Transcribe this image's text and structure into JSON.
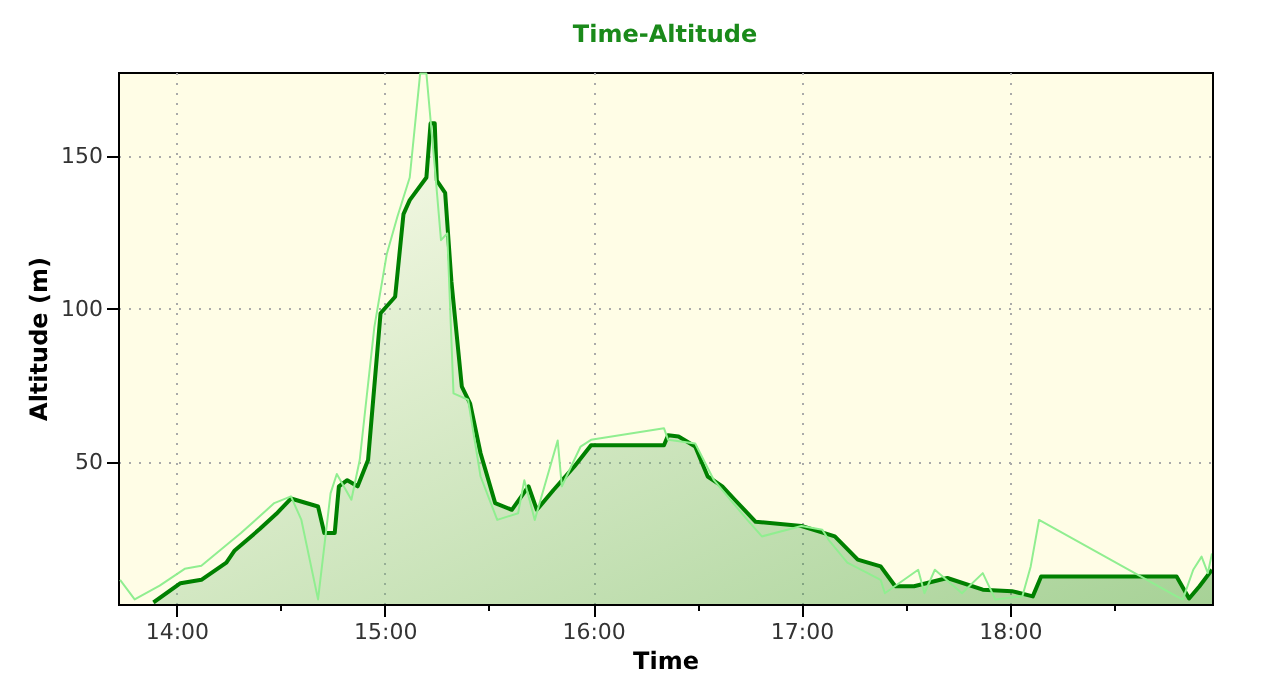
{
  "chart_data": {
    "type": "area",
    "title": "Time-Altitude",
    "xlabel": "Time",
    "ylabel": "Altitude (m)",
    "grid": true,
    "xlim": [
      13.72,
      18.97
    ],
    "ylim": [
      3.5,
      177.5
    ],
    "xticks": [
      {
        "value": 14,
        "label": "14:00"
      },
      {
        "value": 14.5,
        "label": null
      },
      {
        "value": 15,
        "label": "15:00"
      },
      {
        "value": 15.5,
        "label": null
      },
      {
        "value": 16,
        "label": "16:00"
      },
      {
        "value": 16.5,
        "label": null
      },
      {
        "value": 17,
        "label": "17:00"
      },
      {
        "value": 17.5,
        "label": null
      },
      {
        "value": 18,
        "label": "18:00"
      },
      {
        "value": 18.5,
        "label": null
      }
    ],
    "yticks": [
      50,
      100,
      150
    ],
    "series": [
      {
        "color": "#008000",
        "x": [
          13.89,
          14.02,
          14.12,
          14.24,
          14.28,
          14.4,
          14.48,
          14.55,
          14.68,
          14.71,
          14.76,
          14.78,
          14.82,
          14.87,
          14.92,
          14.98,
          15.05,
          15.09,
          15.12,
          15.2,
          15.22,
          15.24,
          15.25,
          15.29,
          15.32,
          15.37,
          15.41,
          15.46,
          15.53,
          15.61,
          15.69,
          15.73,
          15.81,
          15.91,
          15.99,
          16.18,
          16.34,
          16.36,
          16.41,
          16.49,
          16.55,
          16.62,
          16.68,
          16.78,
          17.0,
          17.16,
          17.27,
          17.38,
          17.45,
          17.54,
          17.7,
          17.87,
          18.01,
          18.11,
          18.15,
          18.8,
          18.86,
          18.91,
          18.97
        ],
        "values": [
          4,
          10.3,
          11.4,
          17,
          21,
          28,
          33,
          38,
          35.4,
          26.7,
          26.7,
          42,
          44,
          42,
          50.6,
          98.6,
          104,
          131,
          135.6,
          143,
          160.7,
          160.7,
          142,
          138,
          109,
          74.6,
          69,
          52.8,
          36.5,
          34.3,
          42,
          34.3,
          40.8,
          48.5,
          55.4,
          55.4,
          55.4,
          58.7,
          58.3,
          55,
          45.2,
          42,
          37.6,
          30.4,
          29,
          25.6,
          18,
          15.8,
          9.3,
          9.3,
          12,
          8.2,
          7.7,
          6,
          12.5,
          12.5,
          5.3,
          9.3,
          14.7
        ]
      },
      {
        "type": "line",
        "color": "#90ee90",
        "x": [
          13.73,
          13.8,
          13.92,
          14.04,
          14.12,
          14.31,
          14.47,
          14.55,
          14.6,
          14.68,
          14.74,
          14.77,
          14.84,
          14.88,
          14.95,
          15.01,
          15.06,
          15.12,
          15.17,
          15.2,
          15.24,
          15.27,
          15.3,
          15.33,
          15.4,
          15.46,
          15.54,
          15.64,
          15.67,
          15.72,
          15.83,
          15.85,
          15.94,
          15.99,
          16.34,
          16.36,
          16.49,
          16.58,
          16.74,
          16.81,
          17.0,
          17.1,
          17.13,
          17.22,
          17.38,
          17.4,
          17.56,
          17.59,
          17.64,
          17.77,
          17.87,
          17.93,
          18.06,
          18.1,
          18.14,
          18.8,
          18.83,
          18.88,
          18.92,
          18.95,
          18.97
        ],
        "values": [
          11.4,
          5,
          9.5,
          15,
          16,
          26.7,
          36.5,
          38.7,
          31,
          5,
          39.7,
          46,
          37.6,
          50.6,
          94,
          118,
          130,
          143,
          177,
          177,
          146.5,
          122.5,
          124.7,
          72.4,
          70.3,
          45.2,
          31,
          33.2,
          44,
          31,
          57,
          42,
          55,
          57.2,
          61,
          57.2,
          56,
          44,
          31,
          25.6,
          29,
          27.8,
          24.5,
          17,
          11.4,
          7,
          14.7,
          7,
          14.7,
          7,
          13.6,
          5,
          6,
          15.8,
          31,
          6,
          5,
          14.7,
          19,
          13.6,
          20
        ]
      }
    ]
  }
}
